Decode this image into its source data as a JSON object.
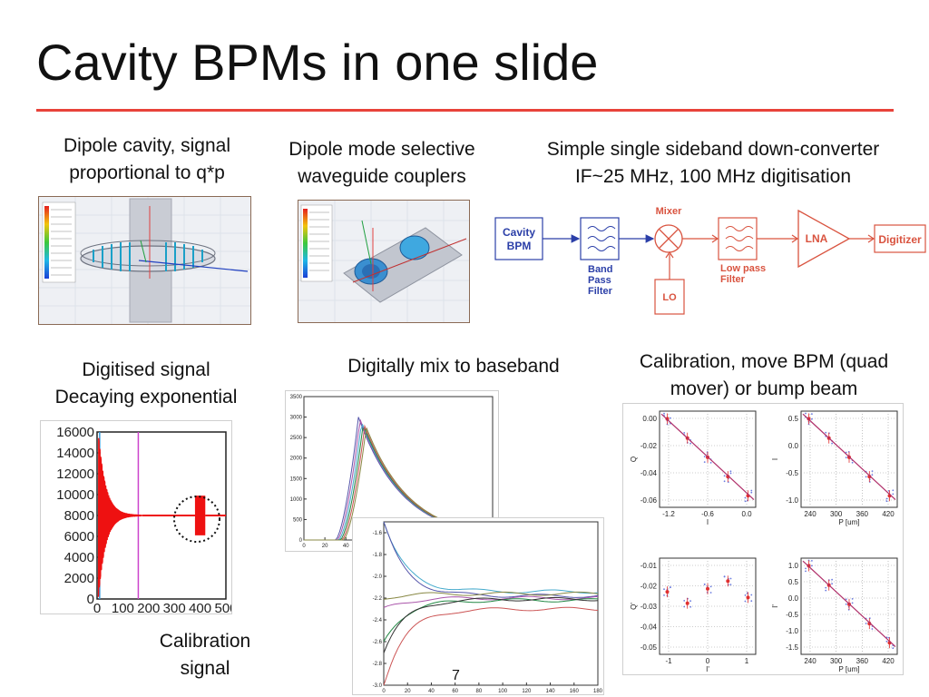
{
  "slide": {
    "title": "Cavity BPMs in one slide",
    "page_number": "7",
    "accent_color": "#e8433a"
  },
  "captions": {
    "dipole_cavity": [
      "Dipole cavity, signal",
      "proportional to q*p"
    ],
    "couplers": [
      "Dipole mode selective",
      "waveguide couplers"
    ],
    "downconverter": [
      "Simple single sideband down-converter",
      "IF~25 MHz, 100 MHz digitisation"
    ],
    "digitised": [
      "Digitised signal",
      "Decaying exponential"
    ],
    "mix": [
      "Digitally mix to baseband"
    ],
    "calibration": [
      "Calibration, move BPM (quad",
      "mover) or bump beam"
    ],
    "cal_signal": [
      "Calibration",
      "signal"
    ]
  },
  "block_diagram": {
    "cavity": [
      "Cavity",
      "BPM"
    ],
    "bandpass": [
      "Band",
      "Pass",
      "Filter"
    ],
    "mixer": "Mixer",
    "lo": "LO",
    "lowpass": [
      "Low pass",
      "Filter"
    ],
    "lna": "LNA",
    "digitizer": "Digitizer"
  },
  "chart_data": [
    {
      "type": "line",
      "name": "digitised-signal",
      "x_ticks": [
        "0",
        "100",
        "200",
        "300",
        "400",
        "500"
      ],
      "y_ticks": [
        "0",
        "2000",
        "4000",
        "6000",
        "8000",
        "10000",
        "12000",
        "14000",
        "16000"
      ],
      "xlim": [
        0,
        500
      ],
      "ylim": [
        0,
        16000
      ],
      "baseline": 8000
    },
    {
      "type": "line",
      "name": "baseband-amplitude",
      "x_ticks": [
        "0",
        "20",
        "40",
        "60",
        "80",
        "100",
        "120",
        "140",
        "160",
        "180"
      ],
      "y_ticks": [
        "0",
        "500",
        "1000",
        "1500",
        "2000",
        "2500",
        "3000",
        "3500"
      ],
      "xlim": [
        0,
        180
      ],
      "ylim": [
        0,
        3500
      ],
      "peak_x": 52,
      "peaks": [
        3000,
        2950,
        2880,
        2820,
        2780,
        2750
      ]
    },
    {
      "type": "line",
      "name": "baseband-phase",
      "x_ticks": [
        "0",
        "20",
        "40",
        "60",
        "80",
        "100",
        "120",
        "140",
        "160",
        "180"
      ],
      "y_ticks": [
        "-1.6",
        "-1.8",
        "-2.0",
        "-2.2",
        "-2.4",
        "-2.6",
        "-2.8",
        "-3.0"
      ],
      "xlim": [
        0,
        180
      ],
      "ylim": [
        -3.0,
        -1.5
      ]
    },
    {
      "type": "scatter",
      "name": "calibration-plots",
      "panels": [
        {
          "xlabel": "I",
          "ylabel": "Q",
          "x_ticks": [
            "-1.2",
            "-0.6",
            "0.0"
          ],
          "y_ticks": [
            "0.00",
            "-0.02",
            "-0.04",
            "-0.06"
          ]
        },
        {
          "xlabel": "P [um]",
          "ylabel": "I",
          "x_ticks": [
            "240",
            "300",
            "360",
            "420"
          ],
          "y_ticks": [
            "0.5",
            "0.0",
            "-0.5",
            "-1.0"
          ]
        },
        {
          "xlabel": "I'",
          "ylabel": "Q'",
          "x_ticks": [
            "-1",
            "0",
            "1"
          ],
          "y_ticks": [
            "-0.01",
            "-0.02",
            "-0.03",
            "-0.04",
            "-0.05"
          ]
        },
        {
          "xlabel": "P [um]",
          "ylabel": "I'",
          "x_ticks": [
            "240",
            "300",
            "360",
            "420"
          ],
          "y_ticks": [
            "1.0",
            "0.5",
            "0.0",
            "-0.5",
            "-1.0",
            "-1.5"
          ]
        }
      ]
    }
  ]
}
